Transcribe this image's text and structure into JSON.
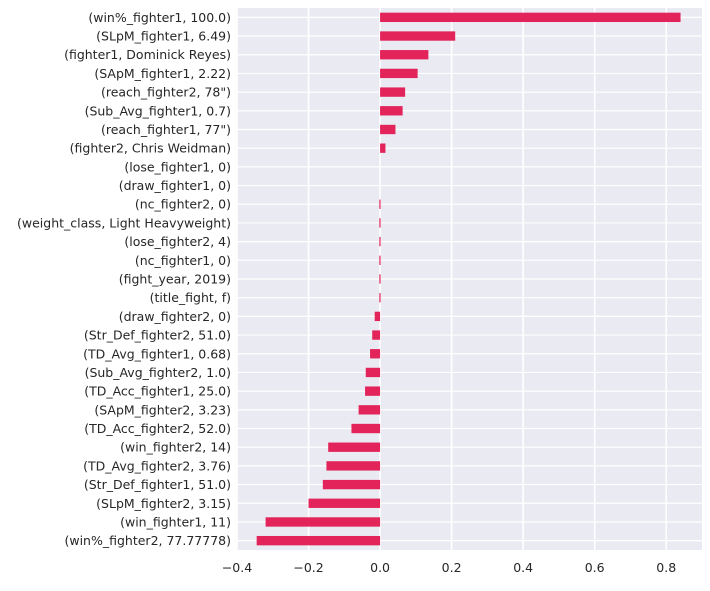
{
  "colors": {
    "plot_background": "#EAEAF2",
    "grid": "#FFFFFF",
    "bar": "#E2245A",
    "text": "#262626"
  },
  "chart_data": {
    "type": "bar",
    "orientation": "horizontal",
    "title": "",
    "xlabel": "",
    "ylabel": "",
    "xlim": [
      -0.4,
      0.9
    ],
    "xticks": [
      -0.4,
      -0.2,
      0.0,
      0.2,
      0.4,
      0.6,
      0.8
    ],
    "xtick_labels": [
      "−0.4",
      "−0.2",
      "0.0",
      "0.2",
      "0.4",
      "0.6",
      "0.8"
    ],
    "grid": true,
    "categories": [
      "(win%_fighter1, 100.0)",
      "(SLpM_fighter1, 6.49)",
      "(fighter1, Dominick Reyes)",
      "(SApM_fighter1, 2.22)",
      "(reach_fighter2, 78\")",
      "(Sub_Avg_fighter1, 0.7)",
      "(reach_fighter1, 77\")",
      "(fighter2, Chris Weidman)",
      "(lose_fighter1, 0)",
      "(draw_fighter1, 0)",
      "(nc_fighter2, 0)",
      "(weight_class, Light Heavyweight)",
      "(lose_fighter2, 4)",
      "(nc_fighter1, 0)",
      "(fight_year, 2019)",
      "(title_fight, f)",
      "(draw_fighter2, 0)",
      "(Str_Def_fighter2, 51.0)",
      "(TD_Avg_fighter1, 0.68)",
      "(Sub_Avg_fighter2, 1.0)",
      "(TD_Acc_fighter1, 25.0)",
      "(SApM_fighter2, 3.23)",
      "(TD_Acc_fighter2, 52.0)",
      "(win_fighter2, 14)",
      "(TD_Avg_fighter2, 3.76)",
      "(Str_Def_fighter1, 51.0)",
      "(SLpM_fighter2, 3.15)",
      "(win_fighter1, 11)",
      "(win%_fighter2, 77.77778)"
    ],
    "values": [
      0.84,
      0.21,
      0.135,
      0.105,
      0.07,
      0.063,
      0.043,
      0.015,
      0.0,
      0.0,
      -0.002,
      -0.002,
      -0.002,
      -0.002,
      -0.002,
      -0.002,
      -0.015,
      -0.022,
      -0.028,
      -0.04,
      -0.042,
      -0.06,
      -0.08,
      -0.145,
      -0.15,
      -0.16,
      -0.2,
      -0.32,
      -0.345
    ]
  }
}
